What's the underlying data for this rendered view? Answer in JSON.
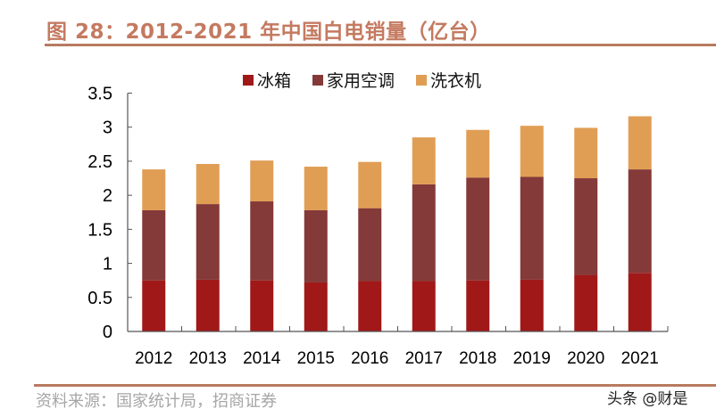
{
  "title": "图 28：2012-2021 年中国白电销量（亿台）",
  "source": "资料来源：国家统计局，招商证券",
  "watermark": "头条 @财是",
  "chart_data": {
    "type": "bar",
    "stacked": true,
    "categories": [
      "2012",
      "2013",
      "2014",
      "2015",
      "2016",
      "2017",
      "2018",
      "2019",
      "2020",
      "2021"
    ],
    "series": [
      {
        "name": "冰箱",
        "color": "#a01818",
        "values": [
          0.75,
          0.76,
          0.75,
          0.72,
          0.74,
          0.74,
          0.75,
          0.76,
          0.83,
          0.86
        ]
      },
      {
        "name": "家用空调",
        "color": "#843a38",
        "values": [
          1.03,
          1.11,
          1.16,
          1.06,
          1.07,
          1.42,
          1.51,
          1.51,
          1.42,
          1.52
        ]
      },
      {
        "name": "洗衣机",
        "color": "#e09e55",
        "values": [
          0.6,
          0.59,
          0.6,
          0.64,
          0.68,
          0.69,
          0.7,
          0.75,
          0.74,
          0.78
        ]
      }
    ],
    "ylim": [
      0,
      3.5
    ],
    "yticks": [
      "0",
      "0.5",
      "1",
      "1.5",
      "2",
      "2.5",
      "3",
      "3.5"
    ],
    "grid": false,
    "legend_position": "top"
  }
}
